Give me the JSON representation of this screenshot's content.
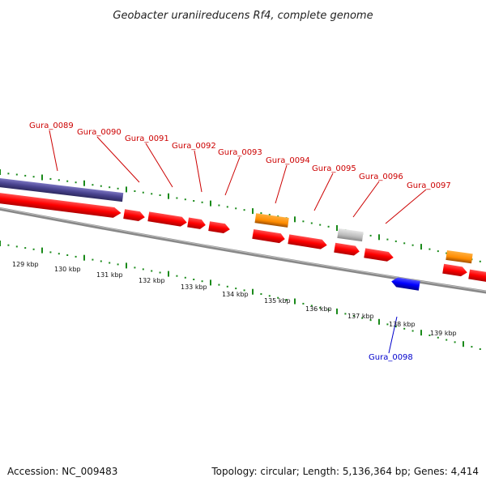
{
  "title": "Geobacter uraniireducens Rf4, complete genome",
  "footer": {
    "accession": "Accession: NC_009483",
    "summary": "Topology: circular; Length: 5,136,364 bp; Genes: 4,414"
  },
  "colors": {
    "cds_forward": "#ff0000",
    "cds_reverse": "#0000ff",
    "rna": "#ff8c00",
    "other": "#bbbbbb",
    "operon": "#4a4490",
    "backbone": "#888888",
    "ticks": "#1a8a1a",
    "label_forward": "#cc0000",
    "label_reverse": "#0000cc"
  },
  "gene_labels": [
    {
      "id": "g89",
      "text": "Gura_0089",
      "strand": "forward"
    },
    {
      "id": "g90",
      "text": "Gura_0090",
      "strand": "forward"
    },
    {
      "id": "g91",
      "text": "Gura_0091",
      "strand": "forward"
    },
    {
      "id": "g92",
      "text": "Gura_0092",
      "strand": "forward"
    },
    {
      "id": "g93",
      "text": "Gura_0093",
      "strand": "forward"
    },
    {
      "id": "g94",
      "text": "Gura_0094",
      "strand": "forward"
    },
    {
      "id": "g95",
      "text": "Gura_0095",
      "strand": "forward"
    },
    {
      "id": "g96",
      "text": "Gura_0096",
      "strand": "forward"
    },
    {
      "id": "g97",
      "text": "Gura_0097",
      "strand": "forward"
    },
    {
      "id": "g98",
      "text": "Gura_0098",
      "strand": "reverse"
    }
  ],
  "kbp_labels": [
    "129 kbp",
    "130 kbp",
    "131 kbp",
    "132 kbp",
    "133 kbp",
    "134 kbp",
    "135 kbp",
    "136 kbp",
    "137 kbp",
    "138 kbp",
    "139 kbp"
  ]
}
